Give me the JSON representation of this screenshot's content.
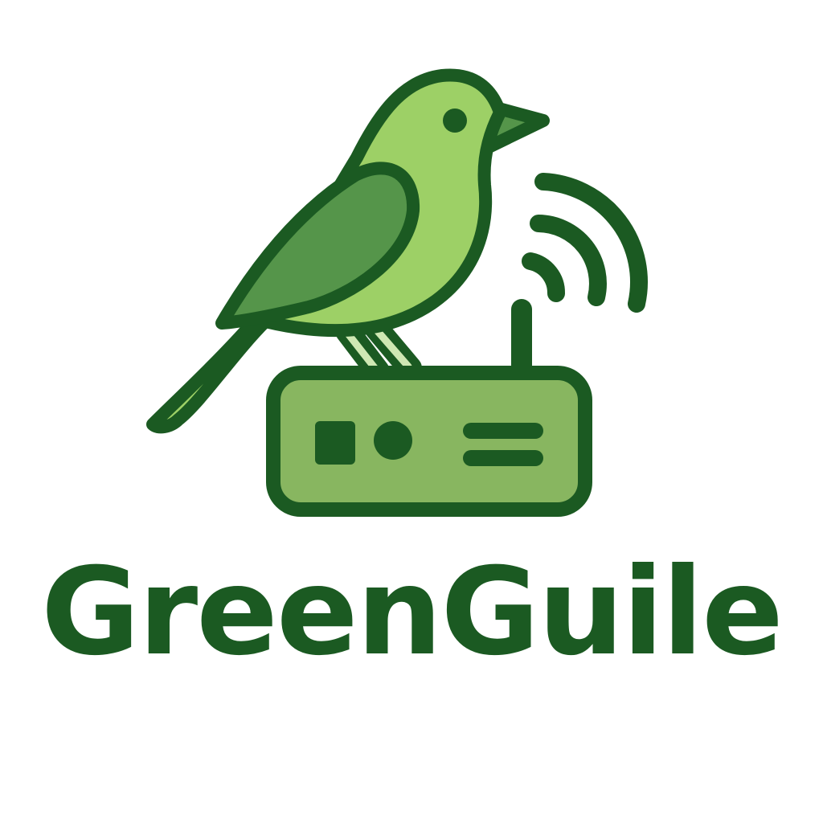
{
  "brand": {
    "name": "GreenGuile",
    "colors": {
      "dark_green": "#1b5a22",
      "bird_body": "#9dd066",
      "bird_wing": "#55954a",
      "router_body": "#88b660",
      "background": "#ffffff"
    }
  },
  "icons": {
    "bird": "bird-icon",
    "router": "router-icon",
    "wifi_signal": "wifi-signal-icon",
    "antenna": "antenna-icon"
  }
}
